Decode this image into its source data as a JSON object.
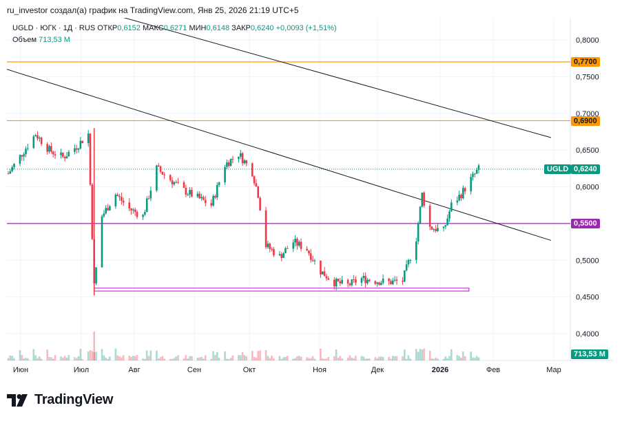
{
  "header": {
    "text": "ru_investor создал(а) график на TradingView.com, Янв 25, 2026 21:19 UTC+5"
  },
  "legend": {
    "symbol": "UGLD · ЮГК · 1Д · RUS",
    "open_label": "ОТКР",
    "open": "0,6152",
    "high_label": "МАКС",
    "high": "0,6271",
    "low_label": "МИН",
    "low": "0,6148",
    "close_label": "ЗАКР",
    "close": "0,6240",
    "change": "+0,0093 (+1,51%)",
    "volume_label": "Объем",
    "volume": "713,53 M"
  },
  "price_labels": {
    "level1": "0,7700",
    "level2": "0,6900",
    "level3": "0,5500",
    "last_symbol": "UGLD",
    "last_price": "0,6240",
    "last_volume": "713,53 M"
  },
  "logo": {
    "text": "TradingView"
  },
  "colors": {
    "up": "#089981",
    "down": "#f23645",
    "orange": "#ff9800",
    "purple": "#9c27b0",
    "magenta": "#c838c8",
    "trend": "#131722"
  },
  "chart_data": {
    "type": "candlestick",
    "y_axis_ticks": [
      "0,8000",
      "0,7500",
      "0,7000",
      "0,6500",
      "0,6000",
      "0,5500",
      "0,5000",
      "0,4500",
      "0,4000"
    ],
    "x_axis_ticks": [
      "Июн",
      "Июл",
      "Авг",
      "Сен",
      "Окт",
      "Ноя",
      "Дек",
      "2026",
      "Фев",
      "Мар"
    ],
    "ylim": [
      0.365,
      0.82
    ],
    "horizontal_levels": [
      {
        "value": 0.77,
        "color": "orange"
      },
      {
        "value": 0.69,
        "color": "orange"
      },
      {
        "value": 0.55,
        "color": "purple"
      }
    ],
    "support_box": {
      "from": "2025-07-10",
      "to": "2026-01-18",
      "low": 0.458,
      "high": 0.462,
      "color": "magenta"
    },
    "trendlines": [
      {
        "from": [
          "2025-05-25",
          0.876
        ],
        "to": [
          "2026-03-01",
          0.667
        ]
      },
      {
        "from": [
          "2025-05-25",
          0.761
        ],
        "to": [
          "2026-03-01",
          0.527
        ]
      }
    ],
    "series_close": [
      [
        "2025-05-27",
        0.618
      ],
      [
        "2025-06-03",
        0.645
      ],
      [
        "2025-06-10",
        0.672
      ],
      [
        "2025-06-17",
        0.65
      ],
      [
        "2025-06-24",
        0.64
      ],
      [
        "2025-07-01",
        0.655
      ],
      [
        "2025-07-07",
        0.672
      ],
      [
        "2025-07-10",
        0.465
      ],
      [
        "2025-07-14",
        0.56
      ],
      [
        "2025-07-21",
        0.59
      ],
      [
        "2025-07-28",
        0.57
      ],
      [
        "2025-08-04",
        0.56
      ],
      [
        "2025-08-11",
        0.625
      ],
      [
        "2025-08-18",
        0.61
      ],
      [
        "2025-08-25",
        0.595
      ],
      [
        "2025-09-01",
        0.585
      ],
      [
        "2025-09-08",
        0.575
      ],
      [
        "2025-09-15",
        0.63
      ],
      [
        "2025-09-22",
        0.645
      ],
      [
        "2025-09-29",
        0.62
      ],
      [
        "2025-10-02",
        0.59
      ],
      [
        "2025-10-06",
        0.52
      ],
      [
        "2025-10-13",
        0.505
      ],
      [
        "2025-10-20",
        0.525
      ],
      [
        "2025-10-27",
        0.515
      ],
      [
        "2025-11-03",
        0.485
      ],
      [
        "2025-11-10",
        0.47
      ],
      [
        "2025-11-17",
        0.466
      ],
      [
        "2025-11-24",
        0.475
      ],
      [
        "2025-12-01",
        0.472
      ],
      [
        "2025-12-08",
        0.47
      ],
      [
        "2025-12-15",
        0.472
      ],
      [
        "2025-12-22",
        0.53
      ],
      [
        "2025-12-25",
        0.59
      ],
      [
        "2025-12-29",
        0.545
      ],
      [
        "2026-01-05",
        0.54
      ],
      [
        "2026-01-09",
        0.575
      ],
      [
        "2026-01-14",
        0.59
      ],
      [
        "2026-01-19",
        0.61
      ],
      [
        "2026-01-23",
        0.624
      ]
    ],
    "last_close": 0.624,
    "last_volume_label": "713,53 M"
  }
}
